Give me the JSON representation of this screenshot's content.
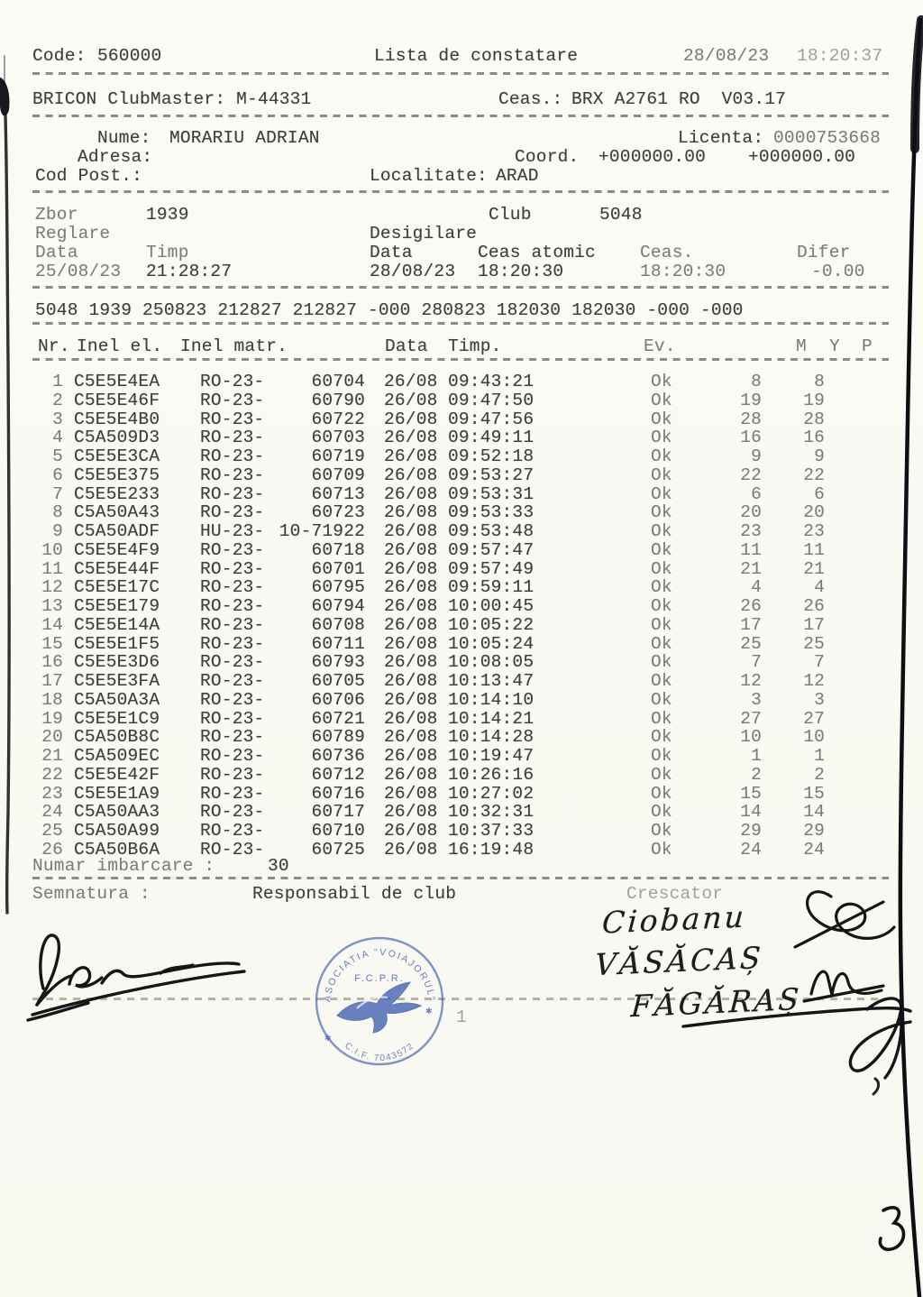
{
  "header": {
    "code_label": "Code:",
    "code_value": "560000",
    "title": "Lista de constatare",
    "date": "28/08/23",
    "time": "18:20:37",
    "device_line": "BRICON ClubMaster: M-44331",
    "clock_label": "Ceas.:",
    "clock_value": "BRX A2761 RO  V03.17"
  },
  "owner": {
    "name_label": "Nume:",
    "name": "MORARIU ADRIAN",
    "license_label": "Licenta:",
    "license": "0000753668",
    "address_label": "Adresa:",
    "coord_label": "Coord.",
    "coord_value_1": "+000000.00",
    "coord_value_2": "+000000.00",
    "postcode_label": "Cod Post.:",
    "locality_label": "Localitate:",
    "locality": "ARAD"
  },
  "flight": {
    "zbor_label": "Zbor",
    "zbor_value": "1939",
    "club_label": "Club",
    "club_value": "5048",
    "reglare_label": "Reglare",
    "desigilare_label": "Desigilare",
    "data_label_1": "Data",
    "timp_label": "Timp",
    "data_label_2": "Data",
    "ceas_atomic_label": "Ceas atomic",
    "ceas_label": "Ceas.",
    "difer_label": "Difer",
    "reglare_data": "25/08/23",
    "reglare_timp": "21:28:27",
    "desigilare_data": "28/08/23",
    "ceas_atomic_value": "18:20:30",
    "ceas_value": "18:20:30",
    "difer_value": "-0.00",
    "summary_line": "5048 1939 250823 212827 212827 -000 280823 182030 182030 -000 -000"
  },
  "table": {
    "headers": {
      "nr": "Nr.",
      "inel_el": "Inel el.",
      "inel_matr": "Inel matr.",
      "data": "Data",
      "timp": "Timp.",
      "ev": "Ev.",
      "m": "M",
      "y": "Y",
      "p": "P"
    },
    "rows": [
      {
        "nr": "1",
        "ring": "C5E5E4EA",
        "country": "RO-23-",
        "matr": "60704",
        "date": "26/08",
        "time": "09:43:21",
        "ev": "Ok",
        "m": "8",
        "y": "8"
      },
      {
        "nr": "2",
        "ring": "C5E5E46F",
        "country": "RO-23-",
        "matr": "60790",
        "date": "26/08",
        "time": "09:47:50",
        "ev": "Ok",
        "m": "19",
        "y": "19"
      },
      {
        "nr": "3",
        "ring": "C5E5E4B0",
        "country": "RO-23-",
        "matr": "60722",
        "date": "26/08",
        "time": "09:47:56",
        "ev": "Ok",
        "m": "28",
        "y": "28"
      },
      {
        "nr": "4",
        "ring": "C5A509D3",
        "country": "RO-23-",
        "matr": "60703",
        "date": "26/08",
        "time": "09:49:11",
        "ev": "Ok",
        "m": "16",
        "y": "16"
      },
      {
        "nr": "5",
        "ring": "C5E5E3CA",
        "country": "RO-23-",
        "matr": "60719",
        "date": "26/08",
        "time": "09:52:18",
        "ev": "Ok",
        "m": "9",
        "y": "9"
      },
      {
        "nr": "6",
        "ring": "C5E5E375",
        "country": "RO-23-",
        "matr": "60709",
        "date": "26/08",
        "time": "09:53:27",
        "ev": "Ok",
        "m": "22",
        "y": "22"
      },
      {
        "nr": "7",
        "ring": "C5E5E233",
        "country": "RO-23-",
        "matr": "60713",
        "date": "26/08",
        "time": "09:53:31",
        "ev": "Ok",
        "m": "6",
        "y": "6"
      },
      {
        "nr": "8",
        "ring": "C5A50A43",
        "country": "RO-23-",
        "matr": "60723",
        "date": "26/08",
        "time": "09:53:33",
        "ev": "Ok",
        "m": "20",
        "y": "20"
      },
      {
        "nr": "9",
        "ring": "C5A50ADF",
        "country": "HU-23-",
        "matr": "10-71922",
        "date": "26/08",
        "time": "09:53:48",
        "ev": "Ok",
        "m": "23",
        "y": "23"
      },
      {
        "nr": "10",
        "ring": "C5E5E4F9",
        "country": "RO-23-",
        "matr": "60718",
        "date": "26/08",
        "time": "09:57:47",
        "ev": "Ok",
        "m": "11",
        "y": "11"
      },
      {
        "nr": "11",
        "ring": "C5E5E44F",
        "country": "RO-23-",
        "matr": "60701",
        "date": "26/08",
        "time": "09:57:49",
        "ev": "Ok",
        "m": "21",
        "y": "21"
      },
      {
        "nr": "12",
        "ring": "C5E5E17C",
        "country": "RO-23-",
        "matr": "60795",
        "date": "26/08",
        "time": "09:59:11",
        "ev": "Ok",
        "m": "4",
        "y": "4"
      },
      {
        "nr": "13",
        "ring": "C5E5E179",
        "country": "RO-23-",
        "matr": "60794",
        "date": "26/08",
        "time": "10:00:45",
        "ev": "Ok",
        "m": "26",
        "y": "26"
      },
      {
        "nr": "14",
        "ring": "C5E5E14A",
        "country": "RO-23-",
        "matr": "60708",
        "date": "26/08",
        "time": "10:05:22",
        "ev": "Ok",
        "m": "17",
        "y": "17"
      },
      {
        "nr": "15",
        "ring": "C5E5E1F5",
        "country": "RO-23-",
        "matr": "60711",
        "date": "26/08",
        "time": "10:05:24",
        "ev": "Ok",
        "m": "25",
        "y": "25"
      },
      {
        "nr": "16",
        "ring": "C5E5E3D6",
        "country": "RO-23-",
        "matr": "60793",
        "date": "26/08",
        "time": "10:08:05",
        "ev": "Ok",
        "m": "7",
        "y": "7"
      },
      {
        "nr": "17",
        "ring": "C5E5E3FA",
        "country": "RO-23-",
        "matr": "60705",
        "date": "26/08",
        "time": "10:13:47",
        "ev": "Ok",
        "m": "12",
        "y": "12"
      },
      {
        "nr": "18",
        "ring": "C5A50A3A",
        "country": "RO-23-",
        "matr": "60706",
        "date": "26/08",
        "time": "10:14:10",
        "ev": "Ok",
        "m": "3",
        "y": "3"
      },
      {
        "nr": "19",
        "ring": "C5E5E1C9",
        "country": "RO-23-",
        "matr": "60721",
        "date": "26/08",
        "time": "10:14:21",
        "ev": "Ok",
        "m": "27",
        "y": "27"
      },
      {
        "nr": "20",
        "ring": "C5A50B8C",
        "country": "RO-23-",
        "matr": "60789",
        "date": "26/08",
        "time": "10:14:28",
        "ev": "Ok",
        "m": "10",
        "y": "10"
      },
      {
        "nr": "21",
        "ring": "C5A509EC",
        "country": "RO-23-",
        "matr": "60736",
        "date": "26/08",
        "time": "10:19:47",
        "ev": "Ok",
        "m": "1",
        "y": "1"
      },
      {
        "nr": "22",
        "ring": "C5E5E42F",
        "country": "RO-23-",
        "matr": "60712",
        "date": "26/08",
        "time": "10:26:16",
        "ev": "Ok",
        "m": "2",
        "y": "2"
      },
      {
        "nr": "23",
        "ring": "C5E5E1A9",
        "country": "RO-23-",
        "matr": "60716",
        "date": "26/08",
        "time": "10:27:02",
        "ev": "Ok",
        "m": "15",
        "y": "15"
      },
      {
        "nr": "24",
        "ring": "C5A50AA3",
        "country": "RO-23-",
        "matr": "60717",
        "date": "26/08",
        "time": "10:32:31",
        "ev": "Ok",
        "m": "14",
        "y": "14"
      },
      {
        "nr": "25",
        "ring": "C5A50A99",
        "country": "RO-23-",
        "matr": "60710",
        "date": "26/08",
        "time": "10:37:33",
        "ev": "Ok",
        "m": "29",
        "y": "29"
      },
      {
        "nr": "26",
        "ring": "C5A50B6A",
        "country": "RO-23-",
        "matr": "60725",
        "date": "26/08",
        "time": "16:19:48",
        "ev": "Ok",
        "m": "24",
        "y": "24"
      }
    ]
  },
  "footer": {
    "numar_label": "Numar imbarcare :",
    "numar_value": "30",
    "semnatura_label": "Semnatura :",
    "responsabil_label": "Responsabil de club",
    "crescator_label": "Crescator",
    "handwritten_name_1": "Ciobanu",
    "handwritten_name_2": "VĂSĂCAȘ",
    "handwritten_name_3": "FĂGĂRAȘ",
    "page_number": "1",
    "handwritten_page_mark": "3"
  },
  "stamp": {
    "top_text": "ASOCIATIA \"VOIAJORUL\"",
    "middle_text": "F.C.P.R.",
    "bottom_text": "C.I.F. 7043572",
    "color": "#4a68b4"
  }
}
